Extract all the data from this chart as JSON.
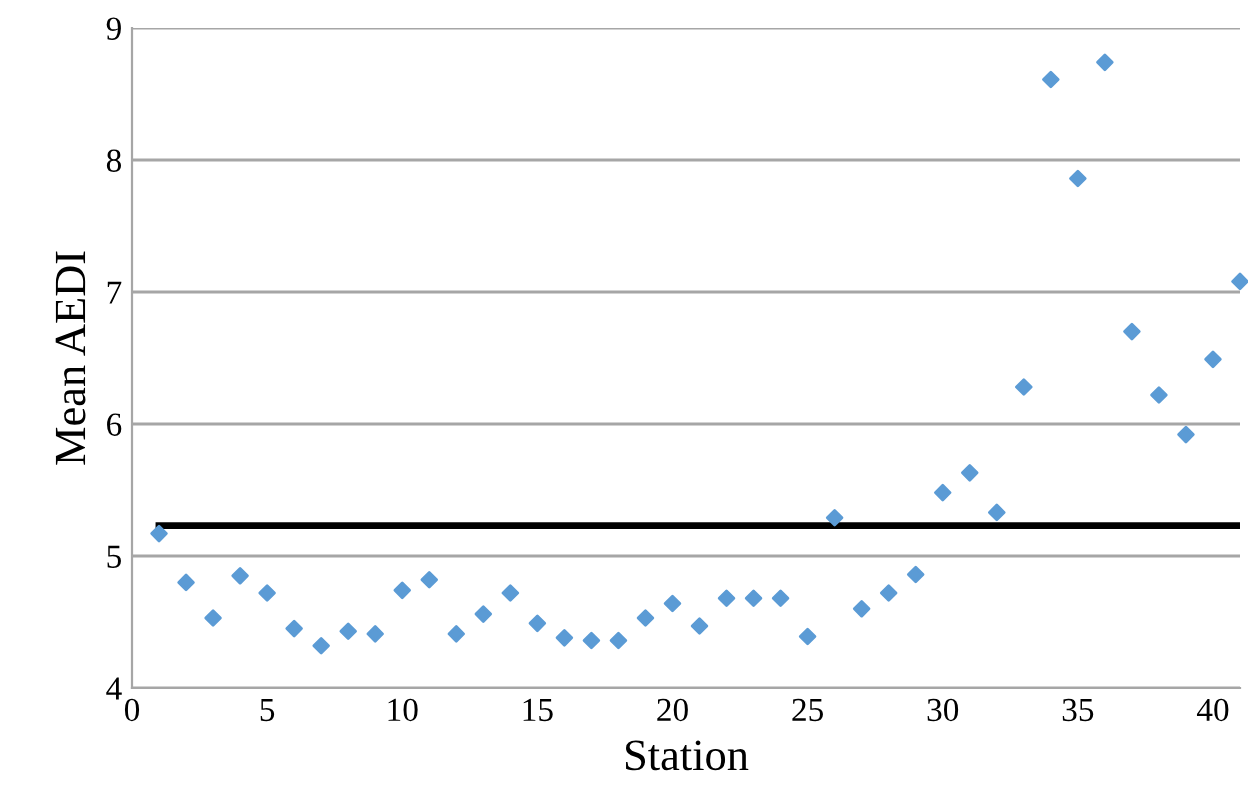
{
  "chart_data": {
    "type": "scatter",
    "xlabel": "Station",
    "ylabel": "Mean AEDI",
    "x": [
      1,
      2,
      3,
      4,
      5,
      6,
      7,
      8,
      9,
      10,
      11,
      12,
      13,
      14,
      15,
      16,
      17,
      18,
      19,
      20,
      21,
      22,
      23,
      24,
      25,
      26,
      27,
      28,
      29,
      30,
      31,
      32,
      33,
      34,
      35,
      36,
      37,
      38,
      39,
      40,
      41
    ],
    "series": [
      {
        "color": "#5b9bd5",
        "values": [
          5.17,
          4.8,
          4.53,
          4.85,
          4.72,
          4.45,
          4.32,
          4.43,
          4.41,
          4.74,
          4.82,
          4.41,
          4.56,
          4.72,
          4.49,
          4.38,
          4.36,
          4.36,
          4.53,
          4.64,
          4.47,
          4.68,
          4.68,
          4.68,
          4.39,
          5.29,
          4.6,
          4.72,
          4.86,
          5.48,
          5.63,
          5.33,
          6.28,
          8.61,
          7.86,
          8.74,
          6.7,
          6.22,
          5.92,
          6.49,
          7.08
        ]
      }
    ],
    "ref_lines": [
      {
        "axis": "y",
        "value": 5.23,
        "color": "#000000",
        "line_style": "solid"
      }
    ],
    "xlim": [
      0,
      41
    ],
    "ylim": [
      4,
      9
    ],
    "xticks": [
      0,
      5,
      10,
      15,
      20,
      25,
      30,
      35,
      40
    ],
    "yticks": [
      4,
      5,
      6,
      7,
      8,
      9
    ],
    "grid": "y",
    "marker": "diamond",
    "legend": false
  }
}
